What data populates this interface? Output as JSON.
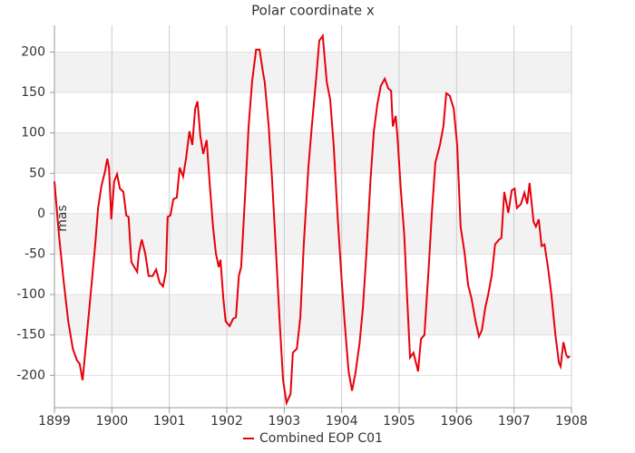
{
  "chart_data": {
    "type": "line",
    "title": "Polar coordinate x",
    "ylabel": "mas",
    "xlim": [
      1899,
      1908
    ],
    "xticks": [
      1899,
      1900,
      1901,
      1902,
      1903,
      1904,
      1905,
      1906,
      1907,
      1908
    ],
    "ylim": [
      -240,
      233
    ],
    "yticks": [
      -200,
      -150,
      -100,
      -50,
      0,
      50,
      100,
      150,
      200
    ],
    "grid": true,
    "legend": "bottom",
    "x": [
      1899.0,
      1899.08,
      1899.16,
      1899.24,
      1899.32,
      1899.39,
      1899.44,
      1899.49,
      1899.55,
      1899.63,
      1899.71,
      1899.76,
      1899.82,
      1899.88,
      1899.92,
      1899.95,
      1899.99,
      1900.04,
      1900.09,
      1900.14,
      1900.2,
      1900.25,
      1900.29,
      1900.34,
      1900.39,
      1900.44,
      1900.47,
      1900.52,
      1900.58,
      1900.64,
      1900.71,
      1900.77,
      1900.83,
      1900.89,
      1900.94,
      1900.97,
      1901.02,
      1901.07,
      1901.13,
      1901.18,
      1901.24,
      1901.29,
      1901.35,
      1901.4,
      1901.45,
      1901.49,
      1901.54,
      1901.59,
      1901.65,
      1901.7,
      1901.76,
      1901.81,
      1901.86,
      1901.89,
      1901.94,
      1901.98,
      1902.05,
      1902.11,
      1902.16,
      1902.21,
      1902.25,
      1902.32,
      1902.38,
      1902.44,
      1902.51,
      1902.57,
      1902.63,
      1902.66,
      1902.73,
      1902.79,
      1902.85,
      1902.92,
      1902.98,
      1903.04,
      1903.11,
      1903.15,
      1903.22,
      1903.28,
      1903.34,
      1903.42,
      1903.48,
      1903.55,
      1903.61,
      1903.67,
      1903.74,
      1903.8,
      1903.86,
      1903.93,
      1903.99,
      1904.05,
      1904.12,
      1904.18,
      1904.24,
      1904.31,
      1904.37,
      1904.43,
      1904.5,
      1904.56,
      1904.62,
      1904.68,
      1904.75,
      1904.81,
      1904.86,
      1904.89,
      1904.94,
      1904.97,
      1905.03,
      1905.09,
      1905.14,
      1905.19,
      1905.25,
      1905.33,
      1905.38,
      1905.44,
      1905.51,
      1905.57,
      1905.63,
      1905.71,
      1905.77,
      1905.82,
      1905.88,
      1905.95,
      1906.01,
      1906.07,
      1906.14,
      1906.2,
      1906.26,
      1906.33,
      1906.39,
      1906.44,
      1906.5,
      1906.55,
      1906.61,
      1906.67,
      1906.74,
      1906.78,
      1906.83,
      1906.9,
      1906.96,
      1907.01,
      1907.05,
      1907.12,
      1907.18,
      1907.23,
      1907.27,
      1907.34,
      1907.38,
      1907.43,
      1907.48,
      1907.53,
      1907.59,
      1907.65,
      1907.72,
      1907.78,
      1907.81,
      1907.86,
      1907.91,
      1907.94,
      1907.97
    ],
    "series": [
      {
        "name": "Combined EOP C01",
        "color": "#e8000b",
        "values": [
          40,
          -27,
          -83,
          -133,
          -167,
          -181,
          -186,
          -206,
          -161,
          -100,
          -38,
          7,
          35,
          52,
          68,
          57,
          -7,
          40,
          49,
          31,
          27,
          -2,
          -4,
          -60,
          -66,
          -72,
          -49,
          -32,
          -49,
          -77,
          -77,
          -69,
          -85,
          -90,
          -72,
          -4,
          -2,
          18,
          20,
          57,
          46,
          68,
          102,
          85,
          130,
          139,
          96,
          74,
          91,
          40,
          -16,
          -49,
          -66,
          -57,
          -105,
          -133,
          -139,
          -130,
          -128,
          -77,
          -66,
          24,
          108,
          163,
          203,
          203,
          175,
          163,
          108,
          40,
          -38,
          -133,
          -206,
          -234,
          -223,
          -172,
          -167,
          -128,
          -38,
          57,
          108,
          163,
          214,
          220,
          163,
          141,
          85,
          -4,
          -72,
          -133,
          -195,
          -219,
          -197,
          -161,
          -116,
          -49,
          40,
          102,
          135,
          158,
          167,
          155,
          152,
          108,
          121,
          96,
          29,
          -27,
          -105,
          -178,
          -172,
          -195,
          -155,
          -150,
          -72,
          1,
          63,
          85,
          108,
          149,
          146,
          130,
          85,
          -16,
          -49,
          -88,
          -105,
          -133,
          -152,
          -144,
          -116,
          -100,
          -77,
          -38,
          -32,
          -30,
          27,
          1,
          29,
          31,
          7,
          12,
          26,
          12,
          38,
          -10,
          -16,
          -7,
          -40,
          -38,
          -66,
          -100,
          -150,
          -184,
          -189,
          -159,
          -175,
          -178,
          -176
        ]
      }
    ]
  }
}
